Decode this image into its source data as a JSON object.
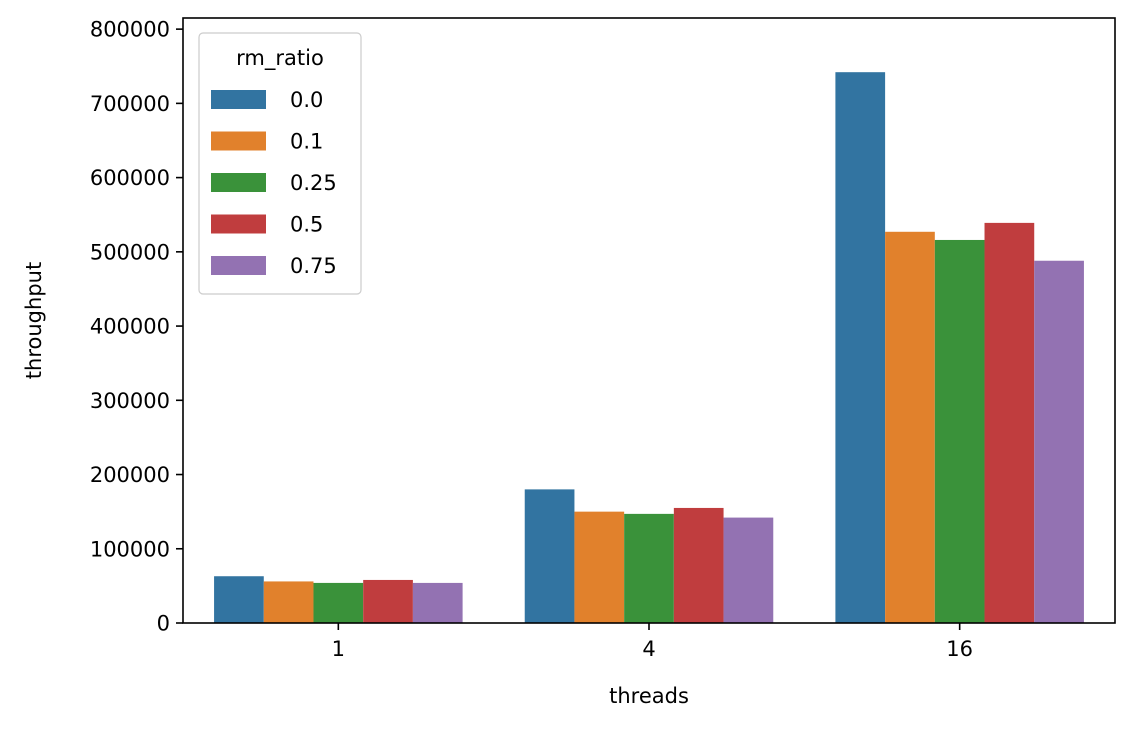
{
  "chart_data": {
    "type": "bar",
    "title": "",
    "xlabel": "threads",
    "ylabel": "throughput",
    "categories": [
      "1",
      "4",
      "16"
    ],
    "ylim": [
      0,
      815000
    ],
    "yticks": [
      0,
      100000,
      200000,
      300000,
      400000,
      500000,
      600000,
      700000,
      800000
    ],
    "ytick_labels": [
      "0",
      "100000",
      "200000",
      "300000",
      "400000",
      "500000",
      "600000",
      "700000",
      "800000"
    ],
    "grid": false,
    "legend": {
      "title": "rm_ratio",
      "placement": "top-left"
    },
    "series": [
      {
        "name": "0.0",
        "color": "#3274a1",
        "values": [
          63000,
          180000,
          742000
        ]
      },
      {
        "name": "0.1",
        "color": "#e1812c",
        "values": [
          56000,
          150000,
          527000
        ]
      },
      {
        "name": "0.25",
        "color": "#3a923a",
        "values": [
          54000,
          147000,
          516000
        ]
      },
      {
        "name": "0.5",
        "color": "#c03d3e",
        "values": [
          58000,
          155000,
          539000
        ]
      },
      {
        "name": "0.75",
        "color": "#9372b2",
        "values": [
          54000,
          142000,
          488000
        ]
      }
    ]
  }
}
